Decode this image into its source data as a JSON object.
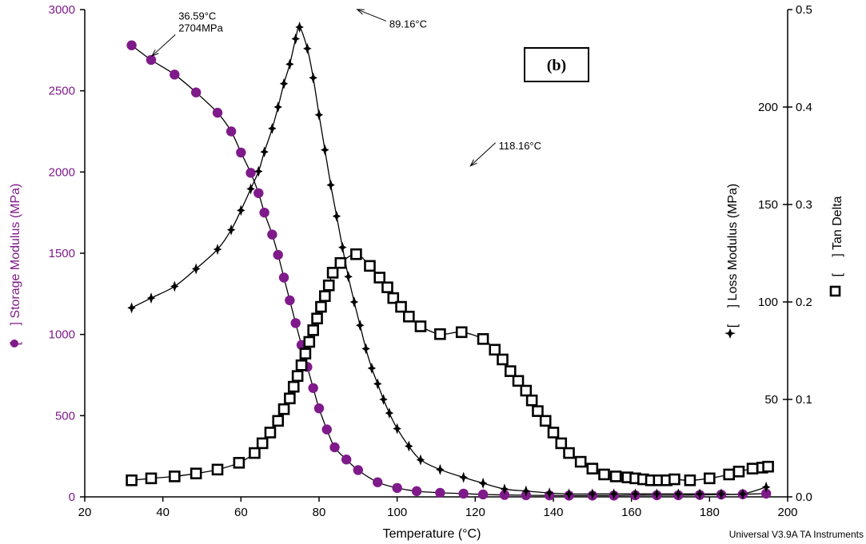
{
  "chart_data": {
    "type": "line",
    "xlabel": "Temperature (°C)",
    "xlim": [
      20,
      200
    ],
    "x_ticks": [
      "20",
      "40",
      "60",
      "80",
      "100",
      "120",
      "140",
      "160",
      "180",
      "200"
    ],
    "axes": {
      "storage": {
        "label_open": "[",
        "label_close": "] Storage Modulus (MPa)",
        "lim": [
          0,
          3000
        ],
        "ticks": [
          "0",
          "500",
          "1000",
          "1500",
          "2000",
          "2500",
          "3000"
        ],
        "color": "#7f1a8a"
      },
      "loss": {
        "label_open": "[",
        "label_close": "] Loss Modulus (MPa)",
        "lim": [
          0,
          250
        ],
        "ticks": [
          "50",
          "100",
          "150",
          "200"
        ],
        "color": "#000000"
      },
      "tan": {
        "label_open": "[",
        "label_close": "] Tan Delta",
        "lim": [
          0,
          0.5
        ],
        "ticks": [
          "0.0",
          "0.1",
          "0.2",
          "0.3",
          "0.4",
          "0.5"
        ],
        "color": "#000000"
      }
    },
    "series": [
      {
        "key": "storage",
        "axis": "storage",
        "marker": "circle",
        "color": "#7f1a8a",
        "x": [
          32,
          37,
          43,
          48.5,
          54,
          57.5,
          60,
          62.5,
          64.5,
          66,
          68,
          69.5,
          71,
          72.5,
          74,
          75.5,
          77,
          78.5,
          80,
          82,
          84,
          87,
          90,
          95,
          100,
          105,
          111,
          117,
          122,
          127.5,
          133,
          139,
          144,
          150,
          155.5,
          161,
          166.5,
          172,
          177.5,
          183,
          188.5,
          194.5
        ],
        "y": [
          2780,
          2690,
          2600,
          2490,
          2365,
          2250,
          2120,
          1995,
          1870,
          1750,
          1615,
          1490,
          1350,
          1210,
          1070,
          935,
          800,
          670,
          545,
          415,
          305,
          230,
          165,
          90,
          55,
          35,
          25,
          20,
          15,
          12,
          10,
          9,
          8,
          8,
          8,
          10,
          10,
          10,
          12,
          14,
          16,
          20
        ]
      },
      {
        "key": "loss",
        "axis": "loss",
        "marker": "star",
        "color": "#000000",
        "x": [
          32,
          37,
          43,
          48.5,
          54,
          57.5,
          60,
          62.5,
          64.5,
          66,
          68,
          69.5,
          71,
          72.5,
          74,
          75,
          77,
          78.5,
          80,
          81.5,
          83,
          84.5,
          86,
          87.5,
          89,
          90.5,
          92,
          93.5,
          95,
          96.5,
          98,
          100,
          103,
          106,
          111,
          117,
          122,
          127.5,
          133,
          139,
          144,
          150,
          155.5,
          161,
          166.5,
          172,
          177.5,
          183,
          188.5,
          194.5
        ],
        "y": [
          97,
          102,
          108,
          117,
          127,
          137,
          147,
          158,
          167,
          177,
          189,
          200,
          212,
          222,
          235,
          241,
          230,
          215,
          196,
          178,
          160,
          144,
          128,
          113,
          100,
          88,
          76,
          66,
          58,
          50,
          43,
          35,
          26,
          19,
          14,
          10,
          7,
          4,
          3,
          2,
          1.5,
          1.5,
          1.5,
          1.5,
          1.5,
          1.5,
          1.5,
          1.5,
          1.5,
          5
        ]
      },
      {
        "key": "tan",
        "axis": "tan",
        "marker": "square",
        "color": "#000000",
        "x": [
          32,
          37,
          43,
          48.5,
          54,
          59.5,
          63.5,
          65.5,
          67.5,
          69.5,
          71,
          72.5,
          73.5,
          74.5,
          75.5,
          76.5,
          77.5,
          78.5,
          79.5,
          80.5,
          81.5,
          82.5,
          83.5,
          85.5,
          89.5,
          93,
          95.5,
          97.5,
          99,
          101,
          103,
          106,
          111,
          116.5,
          122,
          125,
          127,
          129,
          131,
          133,
          134.5,
          136,
          138,
          140,
          142,
          144,
          147,
          150,
          153,
          156,
          159,
          161,
          163,
          165,
          167,
          169,
          171,
          175,
          180,
          185,
          187.5,
          191,
          193.5,
          195
        ],
        "y": [
          0.017,
          0.019,
          0.021,
          0.024,
          0.028,
          0.035,
          0.045,
          0.055,
          0.066,
          0.078,
          0.09,
          0.101,
          0.113,
          0.124,
          0.135,
          0.147,
          0.159,
          0.171,
          0.183,
          0.195,
          0.206,
          0.217,
          0.23,
          0.24,
          0.249,
          0.237,
          0.225,
          0.215,
          0.204,
          0.195,
          0.185,
          0.175,
          0.167,
          0.169,
          0.162,
          0.151,
          0.141,
          0.129,
          0.119,
          0.109,
          0.099,
          0.088,
          0.078,
          0.066,
          0.055,
          0.045,
          0.036,
          0.029,
          0.023,
          0.021,
          0.02,
          0.019,
          0.018,
          0.017,
          0.017,
          0.017,
          0.018,
          0.017,
          0.019,
          0.023,
          0.026,
          0.029,
          0.03,
          0.031
        ]
      }
    ],
    "annotations": [
      {
        "key": "storage_peak",
        "lines": [
          "36.59°C",
          "2704MPa"
        ],
        "x": 36.59,
        "y": 2704,
        "axis": "storage",
        "text_x": 44,
        "text_y": 2865
      },
      {
        "key": "tan_peak1",
        "lines": [
          "89.16°C"
        ],
        "x": 89.16,
        "y": 0.4985,
        "axis": "tan",
        "text_x": 98,
        "text_y": 0.485
      },
      {
        "key": "tan_peak2",
        "lines": [
          "118.16°C"
        ],
        "x": 118.16,
        "y": 0.338,
        "axis": "tan",
        "text_x": 126,
        "text_y": 0.36
      }
    ],
    "panel_label": "(b)",
    "footer": "Universal V3.9A TA Instruments"
  }
}
